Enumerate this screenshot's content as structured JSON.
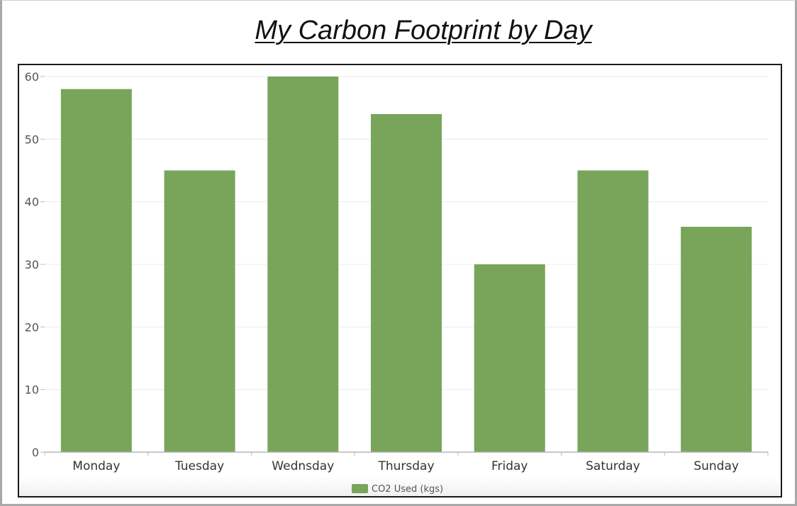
{
  "chart_data": {
    "type": "bar",
    "title": "My Carbon Footprint by Day",
    "categories": [
      "Monday",
      "Tuesday",
      "Wednsday",
      "Thursday",
      "Friday",
      "Saturday",
      "Sunday"
    ],
    "series": [
      {
        "name": "CO2 Used (kgs)",
        "values": [
          58,
          45,
          60,
          54,
          30,
          45,
          36
        ],
        "color": "#78a55a"
      }
    ],
    "ylim": [
      0,
      60
    ],
    "yticks": [
      0,
      10,
      20,
      30,
      40,
      50,
      60
    ],
    "grid": true,
    "legend": "bottom-center",
    "xlabel": "",
    "ylabel": ""
  }
}
